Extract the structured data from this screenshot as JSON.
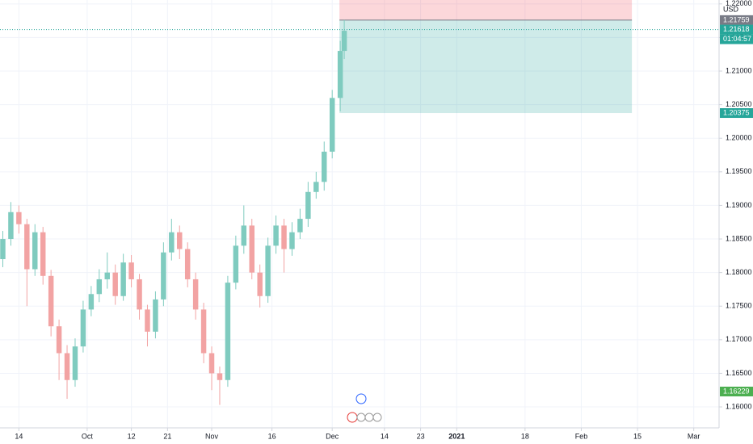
{
  "chart_data": {
    "type": "candlestick",
    "x": [
      254,
      256,
      258,
      260,
      262,
      264,
      266,
      268,
      270,
      272,
      274,
      276,
      278,
      280,
      282,
      284,
      286,
      288,
      290,
      292,
      294,
      296,
      298,
      300,
      302,
      304,
      306,
      308,
      310,
      312,
      314,
      316,
      318,
      320,
      322,
      324,
      326,
      328,
      330,
      332,
      334,
      336,
      338,
      339
    ],
    "open": [
      1.182,
      1.185,
      1.189,
      1.1872,
      1.1805,
      1.186,
      1.1795,
      1.172,
      1.168,
      1.164,
      1.169,
      1.1745,
      1.1768,
      1.179,
      1.18,
      1.1765,
      1.1815,
      1.179,
      1.1745,
      1.1712,
      1.176,
      1.183,
      1.186,
      1.1835,
      1.179,
      1.1745,
      1.168,
      1.165,
      1.164,
      1.1785,
      1.184,
      1.187,
      1.18,
      1.1765,
      1.184,
      1.187,
      1.1835,
      1.186,
      1.188,
      1.192,
      1.1935,
      1.198,
      1.206,
      1.213
    ],
    "high": [
      1.1862,
      1.1905,
      1.19,
      1.188,
      1.1872,
      1.1868,
      1.1804,
      1.173,
      1.1692,
      1.1702,
      1.1758,
      1.178,
      1.1805,
      1.183,
      1.1812,
      1.1828,
      1.1826,
      1.1798,
      1.1752,
      1.1772,
      1.1845,
      1.188,
      1.187,
      1.1845,
      1.18,
      1.1755,
      1.169,
      1.166,
      1.1795,
      1.1855,
      1.19,
      1.188,
      1.1812,
      1.1852,
      1.1885,
      1.188,
      1.1875,
      1.1895,
      1.1935,
      1.195,
      1.1995,
      1.2072,
      1.2145,
      1.2176
    ],
    "low": [
      1.1808,
      1.184,
      1.1858,
      1.175,
      1.1795,
      1.1782,
      1.1705,
      1.164,
      1.1612,
      1.163,
      1.1681,
      1.1735,
      1.1756,
      1.1776,
      1.1752,
      1.1758,
      1.1778,
      1.173,
      1.169,
      1.1702,
      1.175,
      1.1818,
      1.182,
      1.1778,
      1.173,
      1.1665,
      1.1625,
      1.1603,
      1.163,
      1.1775,
      1.1828,
      1.179,
      1.1748,
      1.1755,
      1.1828,
      1.18,
      1.1825,
      1.185,
      1.1868,
      1.191,
      1.1922,
      1.197,
      1.204,
      1.2118
    ],
    "close": [
      1.185,
      1.189,
      1.1872,
      1.1805,
      1.186,
      1.1795,
      1.172,
      1.168,
      1.164,
      1.169,
      1.1745,
      1.1768,
      1.179,
      1.18,
      1.1765,
      1.1815,
      1.179,
      1.1745,
      1.1712,
      1.176,
      1.183,
      1.186,
      1.1835,
      1.179,
      1.1745,
      1.168,
      1.165,
      1.164,
      1.1785,
      1.184,
      1.187,
      1.18,
      1.1765,
      1.184,
      1.187,
      1.1835,
      1.186,
      1.188,
      1.192,
      1.1935,
      1.198,
      1.206,
      1.213,
      1.216
    ],
    "up_color": "#7fcbbf",
    "down_color": "#f2a3a3",
    "grid": true,
    "xlim": [
      253.3,
      432.3
    ],
    "xticks": [
      {
        "value": 258,
        "label": "14"
      },
      {
        "value": 275,
        "label": "Oct"
      },
      {
        "value": 286,
        "label": "12"
      },
      {
        "value": 295,
        "label": "21"
      },
      {
        "value": 306,
        "label": "Nov"
      },
      {
        "value": 321,
        "label": "16"
      },
      {
        "value": 336,
        "label": "Dec"
      },
      {
        "value": 349,
        "label": "14"
      },
      {
        "value": 358,
        "label": "23"
      },
      {
        "value": 367,
        "label": "2021"
      },
      {
        "value": 384,
        "label": "18"
      },
      {
        "value": 398,
        "label": "Feb"
      },
      {
        "value": 412,
        "label": "15"
      },
      {
        "value": 426,
        "label": "Mar"
      }
    ],
    "ylim": [
      1.15688,
      1.22058
    ],
    "yticks": [
      {
        "value": 1.16,
        "label": "1.16000"
      },
      {
        "value": 1.165,
        "label": "1.16500"
      },
      {
        "value": 1.17,
        "label": "1.17000"
      },
      {
        "value": 1.175,
        "label": "1.17500"
      },
      {
        "value": 1.18,
        "label": "1.18000"
      },
      {
        "value": 1.185,
        "label": "1.18500"
      },
      {
        "value": 1.19,
        "label": "1.19000"
      },
      {
        "value": 1.195,
        "label": "1.19500"
      },
      {
        "value": 1.2,
        "label": "1.20000"
      },
      {
        "value": 1.205,
        "label": "1.20500"
      },
      {
        "value": 1.21,
        "label": "1.21000"
      },
      {
        "value": 1.215,
        "label": "1.21500"
      },
      {
        "value": 1.22,
        "label": "1.22000"
      }
    ],
    "currency": "USD",
    "position": {
      "x_start": 337.8,
      "x_end": 410.6,
      "stop": 1.2225,
      "entry": 1.21759,
      "target": 1.20375
    },
    "price_tags": [
      {
        "value": 1.21759,
        "label": "1.21759",
        "color": "#787b86"
      },
      {
        "value": 1.21618,
        "label": "1.21618",
        "color": "#26a69a"
      },
      {
        "value": 1.20375,
        "label": "1.20375",
        "color": "#26a69a"
      },
      {
        "value": 1.16229,
        "label": "1.16229",
        "color": "#4caf50"
      }
    ],
    "countdown": "01:04:57"
  }
}
